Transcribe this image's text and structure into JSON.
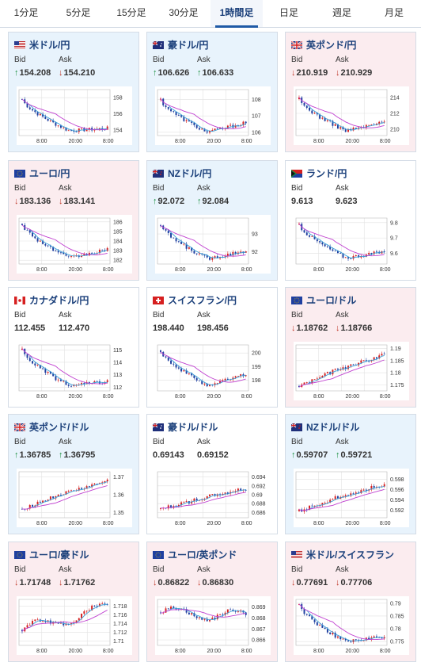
{
  "tabs": [
    {
      "label": "1分足",
      "active": false
    },
    {
      "label": "5分足",
      "active": false
    },
    {
      "label": "15分足",
      "active": false
    },
    {
      "label": "30分足",
      "active": false
    },
    {
      "label": "1時間足",
      "active": true
    },
    {
      "label": "日足",
      "active": false
    },
    {
      "label": "週足",
      "active": false
    },
    {
      "label": "月足",
      "active": false
    }
  ],
  "labels": {
    "bid": "Bid",
    "ask": "Ask"
  },
  "colors": {
    "up_bg": "#e8f3fc",
    "down_bg": "#fbecef",
    "bull": "#d62020",
    "bear": "#1f3fa0",
    "ma_short": "#3aa0d8",
    "ma_long": "#c040d0",
    "title": "#1a3f7a",
    "up_arrow": "#1a8f3f",
    "down_arrow": "#c0392b"
  },
  "x_ticks": [
    "8:00",
    "20:00",
    "8:00"
  ],
  "pairs": [
    {
      "name": "米ドル/円",
      "flag": "us",
      "trend": "up",
      "bid_dir": "up",
      "ask_dir": "down",
      "bid": "154.208",
      "ask": "154.210",
      "chart_data": {
        "type": "candlestick",
        "y_ticks": [
          "158",
          "156",
          "154"
        ],
        "ylim": [
          153.3,
          159.0
        ],
        "series": "down-sag",
        "start": 157.8,
        "end": 154.2,
        "low": 153.9
      }
    },
    {
      "name": "豪ドル/円",
      "flag": "au",
      "trend": "up",
      "bid_dir": "up",
      "ask_dir": "up",
      "bid": "106.626",
      "ask": "106.633",
      "chart_data": {
        "type": "candlestick",
        "y_ticks": [
          "108",
          "107",
          "106"
        ],
        "ylim": [
          105.8,
          108.6
        ],
        "series": "down-sag",
        "start": 108.0,
        "end": 106.6,
        "low": 106.0
      }
    },
    {
      "name": "英ポンド/円",
      "flag": "gb",
      "trend": "down",
      "bid_dir": "down",
      "ask_dir": "down",
      "bid": "210.919",
      "ask": "210.929",
      "chart_data": {
        "type": "candlestick",
        "y_ticks": [
          "214",
          "212",
          "210"
        ],
        "ylim": [
          209.2,
          215.0
        ],
        "series": "down-sag",
        "start": 213.8,
        "end": 210.9,
        "low": 209.8
      }
    },
    {
      "name": "ユーロ/円",
      "flag": "eu",
      "trend": "down",
      "bid_dir": "down",
      "ask_dir": "down",
      "bid": "183.136",
      "ask": "183.141",
      "chart_data": {
        "type": "candlestick",
        "y_ticks": [
          "186",
          "185",
          "184",
          "183",
          "182"
        ],
        "ylim": [
          181.6,
          186.4
        ],
        "series": "down-sag",
        "start": 185.8,
        "end": 183.1,
        "low": 182.2
      }
    },
    {
      "name": "NZドル/円",
      "flag": "nz",
      "trend": "up",
      "bid_dir": "up",
      "ask_dir": "up",
      "bid": "92.072",
      "ask": "92.084",
      "chart_data": {
        "type": "candlestick",
        "y_ticks": [
          "93",
          "92"
        ],
        "ylim": [
          91.3,
          93.9
        ],
        "series": "down-sag",
        "start": 93.5,
        "end": 92.07,
        "low": 91.6
      }
    },
    {
      "name": "ランド/円",
      "flag": "za",
      "trend": "neutral",
      "bid_dir": "none",
      "ask_dir": "none",
      "bid": "9.613",
      "ask": "9.623",
      "chart_data": {
        "type": "candlestick",
        "y_ticks": [
          "9.8",
          "9.7",
          "9.6"
        ],
        "ylim": [
          9.53,
          9.83
        ],
        "series": "down-sag",
        "start": 9.79,
        "end": 9.61,
        "low": 9.57
      }
    },
    {
      "name": "カナダドル/円",
      "flag": "ca",
      "trend": "neutral",
      "bid_dir": "none",
      "ask_dir": "none",
      "bid": "112.455",
      "ask": "112.470",
      "chart_data": {
        "type": "candlestick",
        "y_ticks": [
          "115",
          "114",
          "113",
          "112"
        ],
        "ylim": [
          111.7,
          115.4
        ],
        "series": "down-sag",
        "start": 115.0,
        "end": 112.45,
        "low": 112.1
      }
    },
    {
      "name": "スイスフラン/円",
      "flag": "ch",
      "trend": "neutral",
      "bid_dir": "none",
      "ask_dir": "none",
      "bid": "198.440",
      "ask": "198.456",
      "chart_data": {
        "type": "candlestick",
        "y_ticks": [
          "200",
          "199",
          "198"
        ],
        "ylim": [
          197.2,
          200.6
        ],
        "series": "down-sag",
        "start": 200.2,
        "end": 198.44,
        "low": 197.6
      }
    },
    {
      "name": "ユーロ/ドル",
      "flag": "eu-us",
      "trend": "down",
      "bid_dir": "down",
      "ask_dir": "down",
      "bid": "1.18762",
      "ask": "1.18766",
      "chart_data": {
        "type": "candlestick",
        "y_ticks": [
          "1.19",
          "1.185",
          "1.18",
          "1.175"
        ],
        "ylim": [
          1.1725,
          1.1915
        ],
        "series": "up-rise",
        "start": 1.1745,
        "end": 1.1876,
        "low": 1.1735
      }
    },
    {
      "name": "英ポンド/ドル",
      "flag": "gb-us",
      "trend": "up",
      "bid_dir": "up",
      "ask_dir": "up",
      "bid": "1.36785",
      "ask": "1.36795",
      "chart_data": {
        "type": "candlestick",
        "y_ticks": [
          "1.37",
          "1.36",
          "1.35"
        ],
        "ylim": [
          1.347,
          1.373
        ],
        "series": "up-rise",
        "start": 1.352,
        "end": 1.3679,
        "low": 1.35
      }
    },
    {
      "name": "豪ドル/ドル",
      "flag": "au-us",
      "trend": "neutral",
      "bid_dir": "none",
      "ask_dir": "none",
      "bid": "0.69143",
      "ask": "0.69152",
      "chart_data": {
        "type": "candlestick",
        "y_ticks": [
          "0.694",
          "0.692",
          "0.69",
          "0.688",
          "0.686"
        ],
        "ylim": [
          0.6848,
          0.6952
        ],
        "series": "up-rise",
        "start": 0.6868,
        "end": 0.6914,
        "low": 0.6855
      }
    },
    {
      "name": "NZドル/ドル",
      "flag": "nz-us",
      "trend": "up",
      "bid_dir": "up",
      "ask_dir": "up",
      "bid": "0.59707",
      "ask": "0.59721",
      "chart_data": {
        "type": "candlestick",
        "y_ticks": [
          "0.598",
          "0.596",
          "0.594",
          "0.592"
        ],
        "ylim": [
          0.5905,
          0.5995
        ],
        "series": "up-rise",
        "start": 0.5918,
        "end": 0.5971,
        "low": 0.591
      }
    },
    {
      "name": "ユーロ/豪ドル",
      "flag": "eu-au",
      "trend": "down",
      "bid_dir": "down",
      "ask_dir": "down",
      "bid": "1.71748",
      "ask": "1.71762",
      "chart_data": {
        "type": "candlestick",
        "y_ticks": [
          "1.718",
          "1.716",
          "1.714",
          "1.712",
          "1.71"
        ],
        "ylim": [
          1.709,
          1.7195
        ],
        "series": "flat-wiggle",
        "start": 1.7125,
        "end": 1.7175,
        "low": 1.7105
      }
    },
    {
      "name": "ユーロ/英ポンド",
      "flag": "eu-gb",
      "trend": "down",
      "bid_dir": "down",
      "ask_dir": "down",
      "bid": "0.86822",
      "ask": "0.86830",
      "chart_data": {
        "type": "candlestick",
        "y_ticks": [
          "0.869",
          "0.868",
          "0.867",
          "0.866"
        ],
        "ylim": [
          0.8655,
          0.8697
        ],
        "series": "flat-wiggle",
        "start": 0.8685,
        "end": 0.8682,
        "low": 0.8662
      }
    },
    {
      "name": "米ドル/スイスフラン",
      "flag": "us-ch",
      "trend": "down",
      "bid_dir": "down",
      "ask_dir": "down",
      "bid": "0.77691",
      "ask": "0.77706",
      "chart_data": {
        "type": "candlestick",
        "y_ticks": [
          "0.79",
          "0.785",
          "0.78",
          "0.775"
        ],
        "ylim": [
          0.7735,
          0.7915
        ],
        "series": "down-sag",
        "start": 0.7895,
        "end": 0.7769,
        "low": 0.7748
      }
    }
  ]
}
